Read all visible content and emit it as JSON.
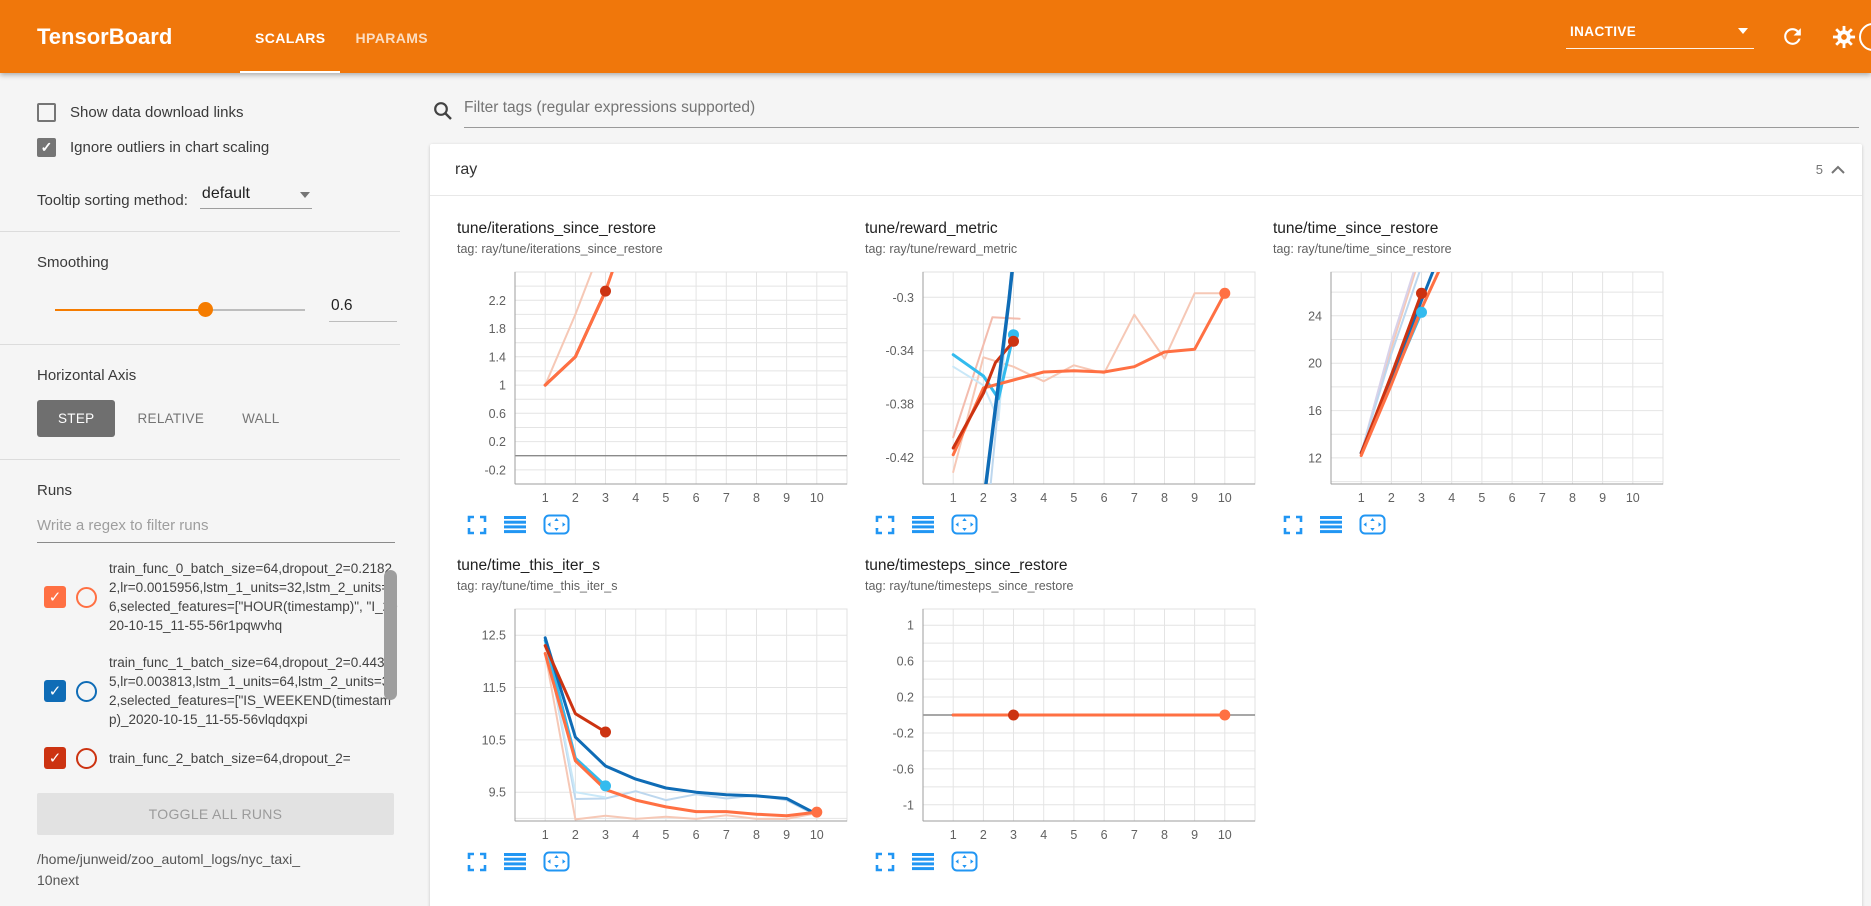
{
  "palette": {
    "header_bg": "#f0770b",
    "accent": "#f57c00",
    "icon_blue": "#2196f3",
    "orange": "#ff7043",
    "orange_faded": "#f6c8b6",
    "red": "#cc3311",
    "red_faded": "#f3bcae",
    "blue": "#0f6cb6",
    "blue_faded": "#bdd7ee",
    "cyan": "#33bbee",
    "cyan_faded": "#c9e8f8",
    "lavender_faded": "#d8d2ea",
    "zero_line": "#8a8a8a"
  },
  "header": {
    "logo": "TensorBoard",
    "tabs": [
      {
        "label": "SCALARS",
        "active": true
      },
      {
        "label": "HPARAMS",
        "active": false
      }
    ],
    "status": "INACTIVE"
  },
  "sidebar": {
    "show_download_label": "Show data download links",
    "show_download_checked": false,
    "ignore_outliers_label": "Ignore outliers in chart scaling",
    "ignore_outliers_checked": true,
    "check_glyph": "✓",
    "tooltip_label": "Tooltip sorting method:",
    "tooltip_value": "default",
    "smoothing_label": "Smoothing",
    "smoothing_value": "0.6",
    "haxis_label": "Horizontal Axis",
    "haxis_options": [
      "STEP",
      "RELATIVE",
      "WALL"
    ],
    "haxis_selected": "STEP",
    "runs_label": "Runs",
    "runs_filter_placeholder": "Write a regex to filter runs",
    "runs": [
      {
        "name": "train_func_0_batch_size=64,dropout_2=0.21822,lr=0.0015956,lstm_1_units=32,lstm_2_units=16,selected_features=[\"HOUR(timestamp)\", \"I_2020-10-15_11-55-56r1pqwvhq",
        "color": "orange",
        "checked": true
      },
      {
        "name": "train_func_1_batch_size=64,dropout_2=0.44315,lr=0.003813,lstm_1_units=64,lstm_2_units=32,selected_features=[\"IS_WEEKEND(timestamp)_2020-10-15_11-55-56vlqdqxpi",
        "color": "blue",
        "checked": true
      },
      {
        "name": "train_func_2_batch_size=64,dropout_2=",
        "color": "red",
        "checked": true
      }
    ],
    "toggle_all_label": "TOGGLE ALL RUNS",
    "log_path_line1": "/home/junweid/zoo_automl_logs/nyc_taxi_",
    "log_path_line2": "10next"
  },
  "main": {
    "filter_placeholder": "Filter tags (regular expressions supported)",
    "group": {
      "name": "ray",
      "count": "5"
    }
  },
  "chart_data": [
    {
      "type": "line",
      "title": "tune/iterations_since_restore",
      "tag": "tag: ray/tune/iterations_since_restore",
      "xlabel": "step",
      "ylabel": "",
      "xticks": [
        1,
        2,
        3,
        4,
        5,
        6,
        7,
        8,
        9,
        10
      ],
      "xlim": [
        0,
        11
      ],
      "yticks": [
        -0.2,
        0.2,
        0.6,
        1,
        1.4,
        1.8,
        2.2
      ],
      "ylim": [
        -0.4,
        2.6
      ],
      "zero_line": true,
      "grid": true,
      "legend": "none",
      "series": [
        {
          "name": "train_func_0 (unsmoothed)",
          "c": "orange_faded",
          "w": 2,
          "pts": [
            [
              1,
              1
            ],
            [
              2,
              2
            ],
            [
              2.9,
              3
            ]
          ]
        },
        {
          "name": "train_func_2 (smoothed)",
          "c": "red",
          "w": 3,
          "pts": [
            [
              1,
              1
            ],
            [
              2,
              1.4
            ],
            [
              3,
              2.33
            ]
          ],
          "dot": [
            3,
            2.33
          ]
        },
        {
          "name": "train_func_0 (smoothed)",
          "c": "orange",
          "w": 3,
          "pts": [
            [
              1,
              1
            ],
            [
              2,
              1.4
            ],
            [
              3,
              2.33
            ],
            [
              3.55,
              3
            ]
          ]
        }
      ]
    },
    {
      "type": "line",
      "title": "tune/reward_metric",
      "tag": "tag: ray/tune/reward_metric",
      "xlabel": "step",
      "ylabel": "",
      "xticks": [
        1,
        2,
        3,
        4,
        5,
        6,
        7,
        8,
        9,
        10
      ],
      "xlim": [
        0,
        11
      ],
      "yticks": [
        -0.42,
        -0.38,
        -0.34,
        -0.3
      ],
      "ylim": [
        -0.44,
        -0.281
      ],
      "zero_line": false,
      "grid": true,
      "legend": "none",
      "series": [
        {
          "name": "train_func_0 (unsmoothed)",
          "c": "orange_faded",
          "w": 2,
          "pts": [
            [
              1,
              -0.431
            ],
            [
              2,
              -0.345
            ],
            [
              3,
              -0.352
            ],
            [
              4,
              -0.363
            ],
            [
              5,
              -0.351
            ],
            [
              6,
              -0.357
            ],
            [
              7,
              -0.313
            ],
            [
              8,
              -0.346
            ],
            [
              9,
              -0.297
            ],
            [
              10,
              -0.297
            ]
          ]
        },
        {
          "name": "train_func_2 (unsmoothed)",
          "c": "red_faded",
          "w": 2,
          "pts": [
            [
              1,
              -0.405
            ],
            [
              2.3,
              -0.315
            ],
            [
              3.2,
              -0.316
            ]
          ]
        },
        {
          "name": "train_func_3 (unsmoothed)",
          "c": "cyan_faded",
          "w": 2,
          "pts": [
            [
              1,
              -0.352
            ],
            [
              2,
              -0.366
            ],
            [
              2.5,
              -0.392
            ],
            [
              3,
              -0.258
            ]
          ]
        },
        {
          "name": "train_func_1 (unsmoothed)",
          "c": "blue_faded",
          "w": 2,
          "pts": [
            [
              2.2,
              -0.45
            ],
            [
              3.05,
              -0.25
            ]
          ]
        },
        {
          "name": "train_func_3 (smoothed)",
          "c": "cyan",
          "w": 3,
          "pts": [
            [
              1,
              -0.343
            ],
            [
              2,
              -0.359
            ],
            [
              2.5,
              -0.376
            ],
            [
              3,
              -0.328
            ]
          ],
          "dot": [
            3,
            -0.328
          ]
        },
        {
          "name": "train_func_0 (smoothed)",
          "c": "orange",
          "w": 3,
          "pts": [
            [
              1,
              -0.418
            ],
            [
              2,
              -0.368
            ],
            [
              3,
              -0.362
            ],
            [
              4,
              -0.356
            ],
            [
              5,
              -0.355
            ],
            [
              6,
              -0.356
            ],
            [
              7,
              -0.352
            ],
            [
              8,
              -0.341
            ],
            [
              9,
              -0.339
            ],
            [
              10,
              -0.297
            ]
          ],
          "dot": [
            10,
            -0.297
          ]
        },
        {
          "name": "train_func_2 (smoothed)",
          "c": "red",
          "w": 3,
          "pts": [
            [
              1,
              -0.413
            ],
            [
              2,
              -0.372
            ],
            [
              2.4,
              -0.349
            ],
            [
              3,
              -0.333
            ]
          ],
          "dot": [
            3,
            -0.333
          ]
        },
        {
          "name": "train_func_1 (smoothed)",
          "c": "blue",
          "w": 3.5,
          "pts": [
            [
              1,
              -0.6
            ],
            [
              2,
              -0.455
            ],
            [
              2.85,
              -0.302
            ],
            [
              3.1,
              -0.25
            ]
          ]
        }
      ]
    },
    {
      "type": "line",
      "title": "tune/time_since_restore",
      "tag": "tag: ray/tune/time_since_restore",
      "xlabel": "step",
      "ylabel": "",
      "xticks": [
        1,
        2,
        3,
        4,
        5,
        6,
        7,
        8,
        9,
        10
      ],
      "xlim": [
        0,
        11
      ],
      "yticks": [
        12,
        16,
        20,
        24
      ],
      "ylim": [
        9.8,
        27.7
      ],
      "zero_line": false,
      "grid": true,
      "legend": "none",
      "series": [
        {
          "name": "train_func_0 (unsmoothed)",
          "c": "orange_faded",
          "w": 2,
          "pts": [
            [
              1,
              12.2
            ],
            [
              2,
              21.3
            ],
            [
              2.85,
              28.2
            ]
          ]
        },
        {
          "name": "train_func_4 (unsmoothed)",
          "c": "lavender_faded",
          "w": 2,
          "pts": [
            [
              1,
              12.4
            ],
            [
              2,
              21.8
            ],
            [
              2.8,
              28.2
            ]
          ]
        },
        {
          "name": "train_func_1 (unsmoothed)",
          "c": "blue_faded",
          "w": 2,
          "pts": [
            [
              1,
              12.45
            ],
            [
              2,
              20.8
            ],
            [
              3,
              28.2
            ]
          ]
        },
        {
          "name": "train_func_3 (smoothed)",
          "c": "cyan",
          "w": 3,
          "pts": [
            [
              1,
              12.4
            ],
            [
              2,
              18.4
            ],
            [
              3,
              24.3
            ]
          ],
          "dot": [
            3,
            24.3
          ]
        },
        {
          "name": "train_func_1 (smoothed)",
          "c": "blue",
          "w": 3,
          "pts": [
            [
              1,
              12.45
            ],
            [
              2,
              18.7
            ],
            [
              3,
              25.3
            ],
            [
              3.45,
              28.2
            ]
          ]
        },
        {
          "name": "train_func_2 (smoothed)",
          "c": "red",
          "w": 3,
          "pts": [
            [
              1,
              12.4
            ],
            [
              2,
              19
            ],
            [
              3,
              25.9
            ]
          ],
          "dot": [
            3,
            25.9
          ]
        },
        {
          "name": "train_func_0 (smoothed)",
          "c": "orange",
          "w": 3,
          "pts": [
            [
              1,
              12.2
            ],
            [
              2,
              18.2
            ],
            [
              3,
              24.6
            ],
            [
              3.65,
              28.2
            ]
          ]
        }
      ]
    },
    {
      "type": "line",
      "title": "tune/time_this_iter_s",
      "tag": "tag: ray/tune/time_this_iter_s",
      "xlabel": "step",
      "ylabel": "",
      "xticks": [
        1,
        2,
        3,
        4,
        5,
        6,
        7,
        8,
        9,
        10
      ],
      "xlim": [
        0,
        11
      ],
      "yticks": [
        9.5,
        10.5,
        11.5,
        12.5
      ],
      "ylim": [
        8.95,
        13
      ],
      "zero_line": false,
      "grid": true,
      "legend": "none",
      "series": [
        {
          "name": "train_func_1 (unsmoothed)",
          "c": "blue_faded",
          "w": 2,
          "pts": [
            [
              1,
              12.45
            ],
            [
              2,
              9.37
            ],
            [
              3,
              9.38
            ],
            [
              4,
              9.52
            ],
            [
              5,
              9.35
            ],
            [
              6,
              9.46
            ],
            [
              7,
              9.38
            ],
            [
              8,
              9.44
            ],
            [
              9,
              9.35
            ],
            [
              10,
              9.05
            ]
          ]
        },
        {
          "name": "train_func_0 (unsmoothed)",
          "c": "orange_faded",
          "w": 2,
          "pts": [
            [
              1,
              12.15
            ],
            [
              2,
              8.98
            ],
            [
              3,
              9.05
            ],
            [
              4,
              8.99
            ],
            [
              5,
              9.03
            ],
            [
              6,
              8.99
            ],
            [
              7,
              9.06
            ],
            [
              8,
              8.99
            ],
            [
              9,
              8.99
            ],
            [
              10,
              9.1
            ]
          ]
        },
        {
          "name": "train_func_3 (unsmoothed)",
          "c": "cyan_faded",
          "w": 2,
          "pts": [
            [
              1,
              12.4
            ],
            [
              2,
              9.5
            ],
            [
              3,
              9.4
            ]
          ]
        },
        {
          "name": "train_func_3 (smoothed)",
          "c": "cyan",
          "w": 3,
          "pts": [
            [
              1,
              12.4
            ],
            [
              2,
              10.15
            ],
            [
              3,
              9.62
            ]
          ],
          "dot": [
            3,
            9.62
          ]
        },
        {
          "name": "train_func_1 (smoothed)",
          "c": "blue",
          "w": 3,
          "pts": [
            [
              1,
              12.45
            ],
            [
              2,
              10.55
            ],
            [
              3,
              10
            ],
            [
              4,
              9.75
            ],
            [
              5,
              9.58
            ],
            [
              6,
              9.5
            ],
            [
              7,
              9.45
            ],
            [
              8,
              9.43
            ],
            [
              9,
              9.38
            ],
            [
              10,
              9.08
            ]
          ]
        },
        {
          "name": "train_func_2 (smoothed)",
          "c": "red",
          "w": 3,
          "pts": [
            [
              1,
              12.3
            ],
            [
              2,
              11
            ],
            [
              3,
              10.65
            ]
          ],
          "dot": [
            3,
            10.65
          ]
        },
        {
          "name": "train_func_0 (smoothed)",
          "c": "orange",
          "w": 3,
          "pts": [
            [
              1,
              12.15
            ],
            [
              2,
              10.1
            ],
            [
              3,
              9.55
            ],
            [
              4,
              9.35
            ],
            [
              5,
              9.22
            ],
            [
              6,
              9.13
            ],
            [
              7,
              9.13
            ],
            [
              8,
              9.08
            ],
            [
              9,
              9.05
            ],
            [
              10,
              9.12
            ]
          ],
          "dot": [
            10,
            9.12
          ]
        }
      ]
    },
    {
      "type": "line",
      "title": "tune/timesteps_since_restore",
      "tag": "tag: ray/tune/timesteps_since_restore",
      "xlabel": "step",
      "ylabel": "",
      "xticks": [
        1,
        2,
        3,
        4,
        5,
        6,
        7,
        8,
        9,
        10
      ],
      "xlim": [
        0,
        11
      ],
      "yticks": [
        -1,
        -0.6,
        -0.2,
        0.2,
        0.6,
        1
      ],
      "ylim": [
        -1.18,
        1.18
      ],
      "zero_line": true,
      "grid": true,
      "legend": "none",
      "series": [
        {
          "name": "train_func_2 (smoothed)",
          "c": "red",
          "w": 3,
          "pts": [
            [
              1,
              0
            ],
            [
              3,
              0
            ]
          ],
          "dot": [
            3,
            0
          ]
        },
        {
          "name": "train_func_0 (smoothed)",
          "c": "orange",
          "w": 3,
          "pts": [
            [
              1,
              0
            ],
            [
              10,
              0
            ]
          ],
          "dot": [
            10,
            0
          ]
        }
      ]
    }
  ]
}
